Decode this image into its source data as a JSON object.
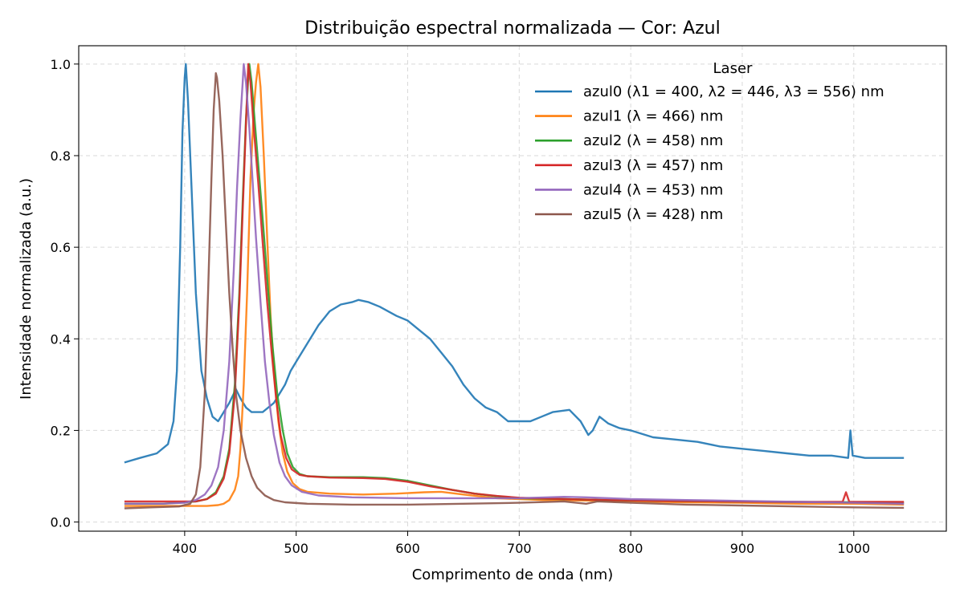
{
  "chart_data": {
    "type": "line",
    "title": "Distribuição espectral normalizada — Cor: Azul",
    "xlabel": "Comprimento de onda (nm)",
    "ylabel": "Intensidade normalizada (a.u.)",
    "xlim": [
      305,
      1083
    ],
    "ylim": [
      -0.02,
      1.04
    ],
    "xticks": [
      400,
      500,
      600,
      700,
      800,
      900,
      1000
    ],
    "yticks": [
      0.0,
      0.2,
      0.4,
      0.6,
      0.8,
      1.0
    ],
    "xtick_labels": [
      "400",
      "500",
      "600",
      "700",
      "800",
      "900",
      "1000"
    ],
    "ytick_labels": [
      "0.0",
      "0.2",
      "0.4",
      "0.6",
      "0.8",
      "1.0"
    ],
    "grid": true,
    "legend": {
      "title": "Laser",
      "placement": "top-right"
    },
    "series": [
      {
        "name": "azul0 (λ1 = 400, λ2 = 446, λ3 = 556) nm",
        "color": "#1f77b4",
        "points": [
          [
            346,
            0.13
          ],
          [
            360,
            0.14
          ],
          [
            375,
            0.15
          ],
          [
            385,
            0.17
          ],
          [
            390,
            0.22
          ],
          [
            393,
            0.33
          ],
          [
            396,
            0.6
          ],
          [
            398,
            0.85
          ],
          [
            400,
            0.97
          ],
          [
            401,
            1.0
          ],
          [
            403,
            0.92
          ],
          [
            406,
            0.74
          ],
          [
            410,
            0.5
          ],
          [
            415,
            0.33
          ],
          [
            420,
            0.27
          ],
          [
            425,
            0.23
          ],
          [
            430,
            0.22
          ],
          [
            435,
            0.24
          ],
          [
            440,
            0.26
          ],
          [
            446,
            0.29
          ],
          [
            450,
            0.27
          ],
          [
            455,
            0.25
          ],
          [
            460,
            0.24
          ],
          [
            465,
            0.24
          ],
          [
            470,
            0.24
          ],
          [
            480,
            0.26
          ],
          [
            485,
            0.28
          ],
          [
            490,
            0.3
          ],
          [
            495,
            0.33
          ],
          [
            500,
            0.35
          ],
          [
            510,
            0.39
          ],
          [
            520,
            0.43
          ],
          [
            530,
            0.46
          ],
          [
            540,
            0.475
          ],
          [
            550,
            0.48
          ],
          [
            556,
            0.485
          ],
          [
            565,
            0.48
          ],
          [
            575,
            0.47
          ],
          [
            590,
            0.45
          ],
          [
            600,
            0.44
          ],
          [
            610,
            0.42
          ],
          [
            620,
            0.4
          ],
          [
            630,
            0.37
          ],
          [
            640,
            0.34
          ],
          [
            650,
            0.3
          ],
          [
            660,
            0.27
          ],
          [
            670,
            0.25
          ],
          [
            680,
            0.24
          ],
          [
            690,
            0.22
          ],
          [
            700,
            0.22
          ],
          [
            710,
            0.22
          ],
          [
            720,
            0.23
          ],
          [
            730,
            0.24
          ],
          [
            745,
            0.245
          ],
          [
            755,
            0.22
          ],
          [
            762,
            0.19
          ],
          [
            766,
            0.2
          ],
          [
            772,
            0.23
          ],
          [
            780,
            0.215
          ],
          [
            790,
            0.205
          ],
          [
            800,
            0.2
          ],
          [
            820,
            0.185
          ],
          [
            840,
            0.18
          ],
          [
            860,
            0.175
          ],
          [
            880,
            0.165
          ],
          [
            900,
            0.16
          ],
          [
            920,
            0.155
          ],
          [
            940,
            0.15
          ],
          [
            960,
            0.145
          ],
          [
            980,
            0.145
          ],
          [
            995,
            0.14
          ],
          [
            997,
            0.2
          ],
          [
            999,
            0.145
          ],
          [
            1010,
            0.14
          ],
          [
            1025,
            0.14
          ],
          [
            1045,
            0.14
          ]
        ]
      },
      {
        "name": "azul1 (λ = 466) nm",
        "color": "#ff7f0e",
        "points": [
          [
            346,
            0.035
          ],
          [
            380,
            0.035
          ],
          [
            420,
            0.035
          ],
          [
            430,
            0.037
          ],
          [
            435,
            0.04
          ],
          [
            440,
            0.048
          ],
          [
            445,
            0.07
          ],
          [
            448,
            0.1
          ],
          [
            450,
            0.16
          ],
          [
            453,
            0.3
          ],
          [
            456,
            0.5
          ],
          [
            459,
            0.75
          ],
          [
            462,
            0.9
          ],
          [
            464,
            0.96
          ],
          [
            466,
            1.0
          ],
          [
            468,
            0.95
          ],
          [
            471,
            0.8
          ],
          [
            474,
            0.62
          ],
          [
            477,
            0.45
          ],
          [
            480,
            0.33
          ],
          [
            484,
            0.22
          ],
          [
            488,
            0.15
          ],
          [
            492,
            0.11
          ],
          [
            497,
            0.085
          ],
          [
            503,
            0.072
          ],
          [
            510,
            0.066
          ],
          [
            530,
            0.062
          ],
          [
            560,
            0.06
          ],
          [
            590,
            0.062
          ],
          [
            615,
            0.065
          ],
          [
            630,
            0.066
          ],
          [
            650,
            0.06
          ],
          [
            680,
            0.052
          ],
          [
            720,
            0.048
          ],
          [
            760,
            0.047
          ],
          [
            800,
            0.045
          ],
          [
            850,
            0.043
          ],
          [
            900,
            0.042
          ],
          [
            950,
            0.04
          ],
          [
            1000,
            0.04
          ],
          [
            1045,
            0.038
          ]
        ]
      },
      {
        "name": "azul2 (λ = 458) nm",
        "color": "#2ca02c",
        "points": [
          [
            346,
            0.04
          ],
          [
            380,
            0.04
          ],
          [
            410,
            0.045
          ],
          [
            420,
            0.05
          ],
          [
            428,
            0.065
          ],
          [
            435,
            0.1
          ],
          [
            440,
            0.16
          ],
          [
            445,
            0.3
          ],
          [
            449,
            0.5
          ],
          [
            452,
            0.7
          ],
          [
            455,
            0.88
          ],
          [
            457,
            0.97
          ],
          [
            458,
            1.0
          ],
          [
            460,
            0.96
          ],
          [
            463,
            0.87
          ],
          [
            467,
            0.75
          ],
          [
            471,
            0.63
          ],
          [
            475,
            0.5
          ],
          [
            479,
            0.38
          ],
          [
            483,
            0.28
          ],
          [
            488,
            0.2
          ],
          [
            492,
            0.15
          ],
          [
            497,
            0.12
          ],
          [
            503,
            0.105
          ],
          [
            510,
            0.1
          ],
          [
            530,
            0.098
          ],
          [
            560,
            0.098
          ],
          [
            580,
            0.096
          ],
          [
            600,
            0.09
          ],
          [
            620,
            0.08
          ],
          [
            640,
            0.07
          ],
          [
            660,
            0.062
          ],
          [
            680,
            0.056
          ],
          [
            700,
            0.052
          ],
          [
            740,
            0.05
          ],
          [
            780,
            0.048
          ],
          [
            830,
            0.046
          ],
          [
            880,
            0.045
          ],
          [
            940,
            0.044
          ],
          [
            1000,
            0.043
          ],
          [
            1045,
            0.042
          ]
        ]
      },
      {
        "name": "azul3 (λ = 457) nm",
        "color": "#d62728",
        "points": [
          [
            346,
            0.045
          ],
          [
            380,
            0.045
          ],
          [
            410,
            0.045
          ],
          [
            420,
            0.05
          ],
          [
            428,
            0.062
          ],
          [
            435,
            0.095
          ],
          [
            440,
            0.15
          ],
          [
            445,
            0.28
          ],
          [
            449,
            0.48
          ],
          [
            452,
            0.68
          ],
          [
            455,
            0.87
          ],
          [
            457,
            1.0
          ],
          [
            459,
            0.96
          ],
          [
            462,
            0.86
          ],
          [
            466,
            0.74
          ],
          [
            470,
            0.61
          ],
          [
            474,
            0.48
          ],
          [
            478,
            0.37
          ],
          [
            482,
            0.27
          ],
          [
            486,
            0.19
          ],
          [
            491,
            0.14
          ],
          [
            496,
            0.115
          ],
          [
            503,
            0.103
          ],
          [
            510,
            0.1
          ],
          [
            530,
            0.097
          ],
          [
            560,
            0.096
          ],
          [
            580,
            0.094
          ],
          [
            600,
            0.088
          ],
          [
            620,
            0.078
          ],
          [
            640,
            0.07
          ],
          [
            660,
            0.062
          ],
          [
            680,
            0.057
          ],
          [
            700,
            0.053
          ],
          [
            740,
            0.05
          ],
          [
            780,
            0.048
          ],
          [
            830,
            0.046
          ],
          [
            880,
            0.045
          ],
          [
            940,
            0.044
          ],
          [
            990,
            0.044
          ],
          [
            993,
            0.065
          ],
          [
            996,
            0.044
          ],
          [
            1045,
            0.044
          ]
        ]
      },
      {
        "name": "azul4 (λ = 453) nm",
        "color": "#9467bd",
        "points": [
          [
            346,
            0.04
          ],
          [
            380,
            0.04
          ],
          [
            400,
            0.042
          ],
          [
            410,
            0.048
          ],
          [
            418,
            0.06
          ],
          [
            424,
            0.08
          ],
          [
            430,
            0.12
          ],
          [
            435,
            0.2
          ],
          [
            440,
            0.35
          ],
          [
            444,
            0.55
          ],
          [
            447,
            0.73
          ],
          [
            450,
            0.88
          ],
          [
            452,
            0.96
          ],
          [
            453,
            1.0
          ],
          [
            455,
            0.96
          ],
          [
            458,
            0.86
          ],
          [
            461,
            0.74
          ],
          [
            464,
            0.62
          ],
          [
            468,
            0.48
          ],
          [
            472,
            0.35
          ],
          [
            476,
            0.26
          ],
          [
            480,
            0.19
          ],
          [
            485,
            0.13
          ],
          [
            490,
            0.1
          ],
          [
            496,
            0.08
          ],
          [
            505,
            0.066
          ],
          [
            520,
            0.058
          ],
          [
            550,
            0.054
          ],
          [
            600,
            0.052
          ],
          [
            650,
            0.052
          ],
          [
            700,
            0.052
          ],
          [
            740,
            0.055
          ],
          [
            760,
            0.054
          ],
          [
            800,
            0.05
          ],
          [
            850,
            0.048
          ],
          [
            900,
            0.046
          ],
          [
            950,
            0.044
          ],
          [
            1000,
            0.042
          ],
          [
            1045,
            0.04
          ]
        ]
      },
      {
        "name": "azul5 (λ = 428) nm",
        "color": "#8c564b",
        "points": [
          [
            346,
            0.03
          ],
          [
            370,
            0.032
          ],
          [
            395,
            0.034
          ],
          [
            405,
            0.04
          ],
          [
            410,
            0.06
          ],
          [
            414,
            0.12
          ],
          [
            418,
            0.28
          ],
          [
            421,
            0.5
          ],
          [
            424,
            0.75
          ],
          [
            426,
            0.9
          ],
          [
            428,
            0.98
          ],
          [
            429,
            0.97
          ],
          [
            431,
            0.92
          ],
          [
            434,
            0.8
          ],
          [
            437,
            0.65
          ],
          [
            440,
            0.5
          ],
          [
            443,
            0.38
          ],
          [
            446,
            0.28
          ],
          [
            450,
            0.2
          ],
          [
            455,
            0.14
          ],
          [
            460,
            0.1
          ],
          [
            465,
            0.075
          ],
          [
            472,
            0.058
          ],
          [
            480,
            0.048
          ],
          [
            490,
            0.043
          ],
          [
            510,
            0.04
          ],
          [
            550,
            0.038
          ],
          [
            600,
            0.038
          ],
          [
            650,
            0.04
          ],
          [
            700,
            0.042
          ],
          [
            740,
            0.045
          ],
          [
            760,
            0.04
          ],
          [
            770,
            0.045
          ],
          [
            800,
            0.042
          ],
          [
            850,
            0.038
          ],
          [
            900,
            0.036
          ],
          [
            950,
            0.034
          ],
          [
            1000,
            0.032
          ],
          [
            1045,
            0.031
          ]
        ]
      }
    ]
  }
}
